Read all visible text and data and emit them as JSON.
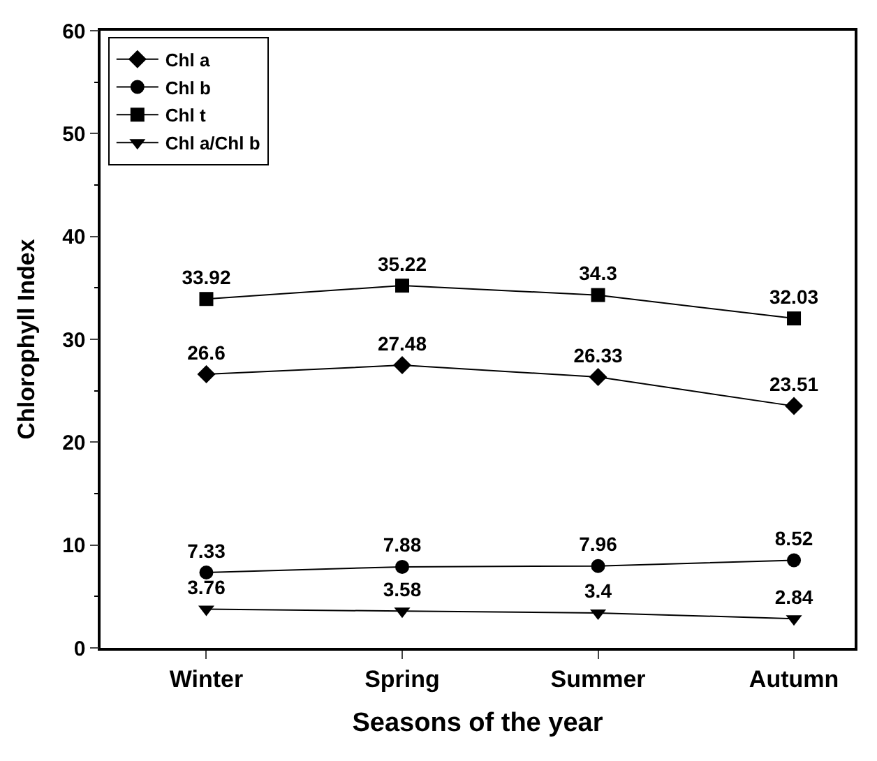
{
  "chart_data": {
    "type": "line",
    "xlabel": "Seasons of the year",
    "ylabel": "Chlorophyll Index",
    "categories": [
      "Winter",
      "Spring",
      "Summer",
      "Autumn"
    ],
    "series": [
      {
        "name": "Chl a",
        "color": "#000000",
        "marker": "diamond",
        "values": [
          26.6,
          27.48,
          26.33,
          23.51
        ]
      },
      {
        "name": "Chl b",
        "color": "#000000",
        "marker": "circle",
        "values": [
          7.33,
          7.88,
          7.96,
          8.52
        ]
      },
      {
        "name": "Chl t",
        "color": "#000000",
        "marker": "square",
        "values": [
          33.92,
          35.22,
          34.3,
          32.03
        ]
      },
      {
        "name": "Chl a/Chl b",
        "color": "#000000",
        "marker": "triangle-down",
        "values": [
          3.76,
          3.58,
          3.4,
          2.84
        ]
      }
    ],
    "ylim": [
      0,
      60
    ],
    "yticks": [
      0,
      10,
      20,
      30,
      40,
      50,
      60
    ],
    "legend": "top left",
    "data_labels": true,
    "line_style": "solid"
  }
}
